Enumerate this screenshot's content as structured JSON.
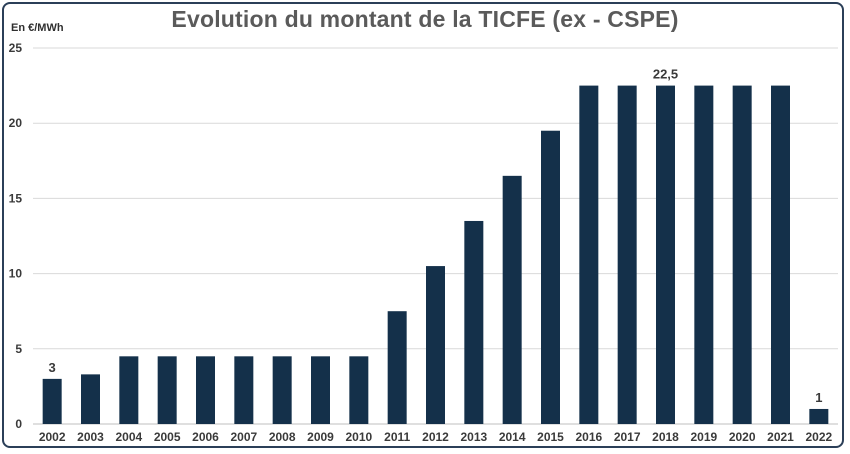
{
  "chart_data": {
    "type": "bar",
    "title": "Evolution du montant de la TICFE (ex - CSPE)",
    "ylabel": "En €/MWh",
    "xlabel": "",
    "categories": [
      "2002",
      "2003",
      "2004",
      "2005",
      "2006",
      "2007",
      "2008",
      "2009",
      "2010",
      "2011",
      "2012",
      "2013",
      "2014",
      "2015",
      "2016",
      "2017",
      "2018",
      "2019",
      "2020",
      "2021",
      "2022"
    ],
    "values": [
      3,
      3.3,
      4.5,
      4.5,
      4.5,
      4.5,
      4.5,
      4.5,
      4.5,
      7.5,
      10.5,
      13.5,
      16.5,
      19.5,
      22.5,
      22.5,
      22.5,
      22.5,
      22.5,
      22.5,
      1
    ],
    "ylim": [
      0,
      25
    ],
    "yticks": [
      "0",
      "5",
      "10",
      "15",
      "20",
      "25"
    ],
    "grid": true,
    "legend": "none",
    "data_labels": [
      {
        "category": "2002",
        "text": "3"
      },
      {
        "category": "2018",
        "text": "22,5"
      },
      {
        "category": "2022",
        "text": "1"
      }
    ],
    "bar_color": "#14304a",
    "title_color": "#5a5a5a"
  }
}
